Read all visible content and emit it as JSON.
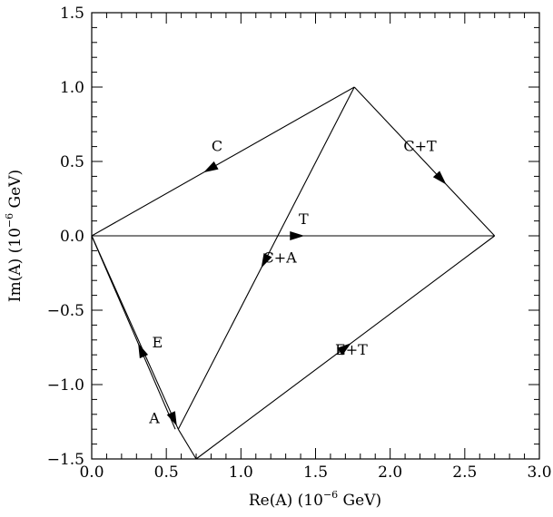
{
  "chart_data": {
    "type": "line",
    "title": "",
    "xlabel": "Re(A) (10",
    "xlabel_exp": "−6",
    "xlabel_unit": " GeV)",
    "ylabel": "Im(A) (10",
    "ylabel_exp": "−6",
    "ylabel_unit": " GeV)",
    "xlim": [
      0.0,
      3.0
    ],
    "ylim": [
      -1.5,
      1.5
    ],
    "x_ticks": [
      0.0,
      0.5,
      1.0,
      1.5,
      2.0,
      2.5,
      3.0
    ],
    "x_tick_labels": [
      "0.0",
      "0.5",
      "1.0",
      "1.5",
      "2.0",
      "2.5",
      "3.0"
    ],
    "y_ticks": [
      -1.5,
      -1.0,
      -0.5,
      0.0,
      0.5,
      1.0,
      1.5
    ],
    "y_tick_labels": [
      "−1.5",
      "−1.0",
      "−0.5",
      "0.0",
      "0.5",
      "1.0",
      "1.5"
    ],
    "grid": false,
    "vectors": [
      {
        "name": "C",
        "from": [
          1.76,
          1.0
        ],
        "to": [
          0.0,
          0.0
        ],
        "arrow_at": 0.55,
        "label": "C",
        "label_pos": [
          0.84,
          0.57
        ]
      },
      {
        "name": "C+T",
        "from": [
          1.76,
          1.0
        ],
        "to": [
          2.7,
          0.0
        ],
        "arrow_at": 0.62,
        "label": "C+T",
        "label_pos": [
          2.2,
          0.57
        ]
      },
      {
        "name": "T",
        "from": [
          0.0,
          0.0
        ],
        "to": [
          2.7,
          0.0
        ],
        "arrow_at": 0.51,
        "label": "T",
        "label_pos": [
          1.42,
          0.08
        ]
      },
      {
        "name": "C+A",
        "from": [
          1.76,
          1.0
        ],
        "to": [
          0.58,
          -1.3
        ],
        "arrow_at": 0.51,
        "label": "C+A",
        "label_pos": [
          1.26,
          -0.18
        ]
      },
      {
        "name": "E",
        "from": [
          0.56,
          -1.3
        ],
        "to": [
          0.0,
          0.0
        ],
        "arrow_at": 0.41,
        "label": "E",
        "label_pos": [
          0.44,
          -0.75
        ]
      },
      {
        "name": "A",
        "from": [
          0.0,
          0.0
        ],
        "to": [
          0.58,
          -1.3
        ],
        "arrow_at": 0.95,
        "label": "A",
        "label_pos": [
          0.42,
          -1.26
        ]
      },
      {
        "name": "E+T",
        "from": [
          0.7,
          -1.5
        ],
        "to": [
          2.7,
          0.0
        ],
        "arrow_at": 0.5,
        "label": "E+T",
        "label_pos": [
          1.74,
          -0.8
        ]
      }
    ],
    "extra_segments": [
      {
        "from": [
          0.58,
          -1.3
        ],
        "to": [
          0.7,
          -1.5
        ]
      }
    ]
  }
}
